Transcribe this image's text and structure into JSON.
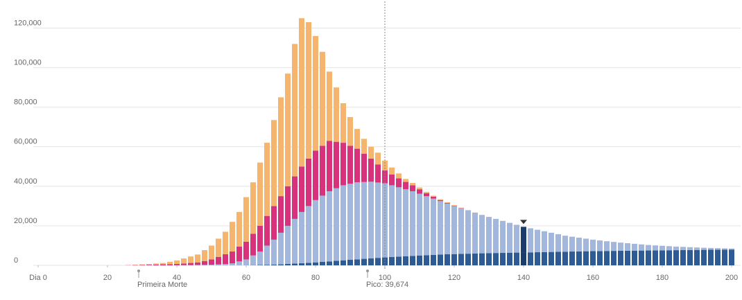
{
  "chart_data": {
    "type": "stacked-bar",
    "x": [
      26,
      28,
      30,
      32,
      34,
      36,
      38,
      40,
      42,
      44,
      46,
      48,
      50,
      52,
      54,
      56,
      58,
      60,
      62,
      64,
      66,
      68,
      70,
      72,
      74,
      76,
      78,
      80,
      82,
      84,
      86,
      88,
      90,
      92,
      94,
      96,
      98,
      100,
      102,
      104,
      106,
      108,
      110,
      112,
      114,
      116,
      118,
      120,
      122,
      124,
      126,
      128,
      130,
      132,
      134,
      136,
      138,
      140,
      142,
      144,
      146,
      148,
      150,
      152,
      154,
      156,
      158,
      160,
      162,
      164,
      166,
      168,
      170,
      172,
      174,
      176,
      178,
      180,
      182,
      184,
      186,
      188,
      190,
      192,
      194,
      196,
      198,
      200
    ],
    "series": [
      {
        "color": "#2f5b94",
        "values": [
          0,
          0,
          0,
          0,
          0,
          0,
          0,
          0,
          0,
          0,
          0,
          0,
          0,
          0,
          0,
          0,
          0,
          0,
          100,
          200,
          300,
          400,
          500,
          700,
          900,
          1100,
          1300,
          1500,
          1750,
          2000,
          2300,
          2550,
          2800,
          3050,
          3300,
          3550,
          3800,
          4000,
          4200,
          4400,
          4600,
          4800,
          5000,
          5150,
          5300,
          5450,
          5600,
          5700,
          5800,
          5900,
          6000,
          6100,
          6150,
          6250,
          6300,
          6400,
          6450,
          6500,
          6570,
          6640,
          6710,
          6780,
          6850,
          6920,
          6990,
          7060,
          7130,
          7200,
          7240,
          7280,
          7320,
          7360,
          7400,
          7440,
          7480,
          7520,
          7560,
          7600,
          7640,
          7680,
          7720,
          7760,
          7800,
          7840,
          7880,
          7920,
          7960,
          8000
        ]
      },
      {
        "color": "#a3b6db",
        "values": [
          0,
          0,
          0,
          0,
          0,
          0,
          0,
          50,
          100,
          150,
          200,
          250,
          300,
          500,
          700,
          1000,
          2000,
          3000,
          4900,
          6800,
          9700,
          12600,
          16000,
          19300,
          22600,
          25900,
          28700,
          31500,
          33500,
          35500,
          36700,
          37950,
          38450,
          38950,
          38850,
          38750,
          38100,
          37500,
          36300,
          35100,
          33900,
          32700,
          31250,
          29850,
          28450,
          27050,
          25650,
          24300,
          23050,
          21800,
          20600,
          19400,
          18350,
          17250,
          16200,
          15100,
          14050,
          13000,
          12180,
          11360,
          10540,
          9720,
          8900,
          8080,
          7510,
          6940,
          6370,
          5800,
          5360,
          4920,
          4530,
          4140,
          3800,
          3460,
          3120,
          2780,
          2540,
          2300,
          2060,
          1820,
          1630,
          1440,
          1250,
          1060,
          920,
          780,
          640,
          500
        ]
      },
      {
        "color": "#d8327c",
        "values": [
          100,
          150,
          200,
          300,
          400,
          500,
          600,
          650,
          850,
          1050,
          1300,
          1950,
          2700,
          3800,
          4900,
          6000,
          7500,
          9000,
          11000,
          13000,
          15000,
          17000,
          18500,
          20000,
          21500,
          23000,
          24000,
          25000,
          25250,
          25500,
          23500,
          21500,
          19250,
          17000,
          14350,
          11700,
          9100,
          6500,
          5500,
          4500,
          3700,
          3000,
          2250,
          1500,
          950,
          500,
          350,
          200,
          150,
          100,
          50,
          0,
          0,
          0,
          0,
          0,
          0,
          0,
          0,
          0,
          0,
          0,
          0,
          0,
          0,
          0,
          0,
          0,
          0,
          0,
          0,
          0,
          0,
          0,
          0,
          0,
          0,
          0,
          0,
          0,
          0,
          0,
          0,
          0,
          0,
          0,
          0,
          0
        ]
      },
      {
        "color": "#f6b56f",
        "values": [
          50,
          150,
          300,
          400,
          550,
          700,
          1200,
          1800,
          2550,
          3300,
          4000,
          5500,
          7000,
          9200,
          11400,
          15000,
          17500,
          22500,
          26000,
          32000,
          37000,
          43500,
          50000,
          57000,
          67000,
          75000,
          69000,
          58000,
          47500,
          35000,
          27500,
          20000,
          14500,
          10000,
          7500,
          6000,
          6000,
          5000,
          3500,
          2500,
          1500,
          1200,
          900,
          700,
          550,
          450,
          350,
          250,
          200,
          100,
          50,
          50,
          50,
          0,
          0,
          0,
          0,
          0,
          0,
          0,
          0,
          0,
          0,
          0,
          0,
          0,
          0,
          0,
          0,
          0,
          0,
          0,
          0,
          0,
          0,
          0,
          0,
          0,
          0,
          0,
          0,
          0,
          0,
          0,
          0,
          0,
          0,
          0
        ]
      }
    ],
    "xlim": [
      0,
      200
    ],
    "xticks": [
      {
        "value": 0,
        "label": "Dia 0"
      },
      20,
      40,
      60,
      80,
      100,
      120,
      140,
      160,
      180,
      200
    ],
    "ylim": [
      0,
      130000
    ],
    "yticks": [
      0,
      {
        "value": 20000,
        "label": "20,000"
      },
      {
        "value": 40000,
        "label": "40,000"
      },
      {
        "value": 60000,
        "label": "60,000"
      },
      {
        "value": 80000,
        "label": "80,000"
      },
      {
        "value": 100000,
        "label": "100,000"
      },
      {
        "value": 120000,
        "label": "120,000"
      }
    ],
    "grid": true,
    "vline_x": 100,
    "highlight_x": 140,
    "highlight_color": "#1c3d6b",
    "annotations": [
      {
        "x": 29,
        "text": "Primeira Morte"
      },
      {
        "x": 95,
        "text": "Pico: 39,674"
      }
    ]
  }
}
